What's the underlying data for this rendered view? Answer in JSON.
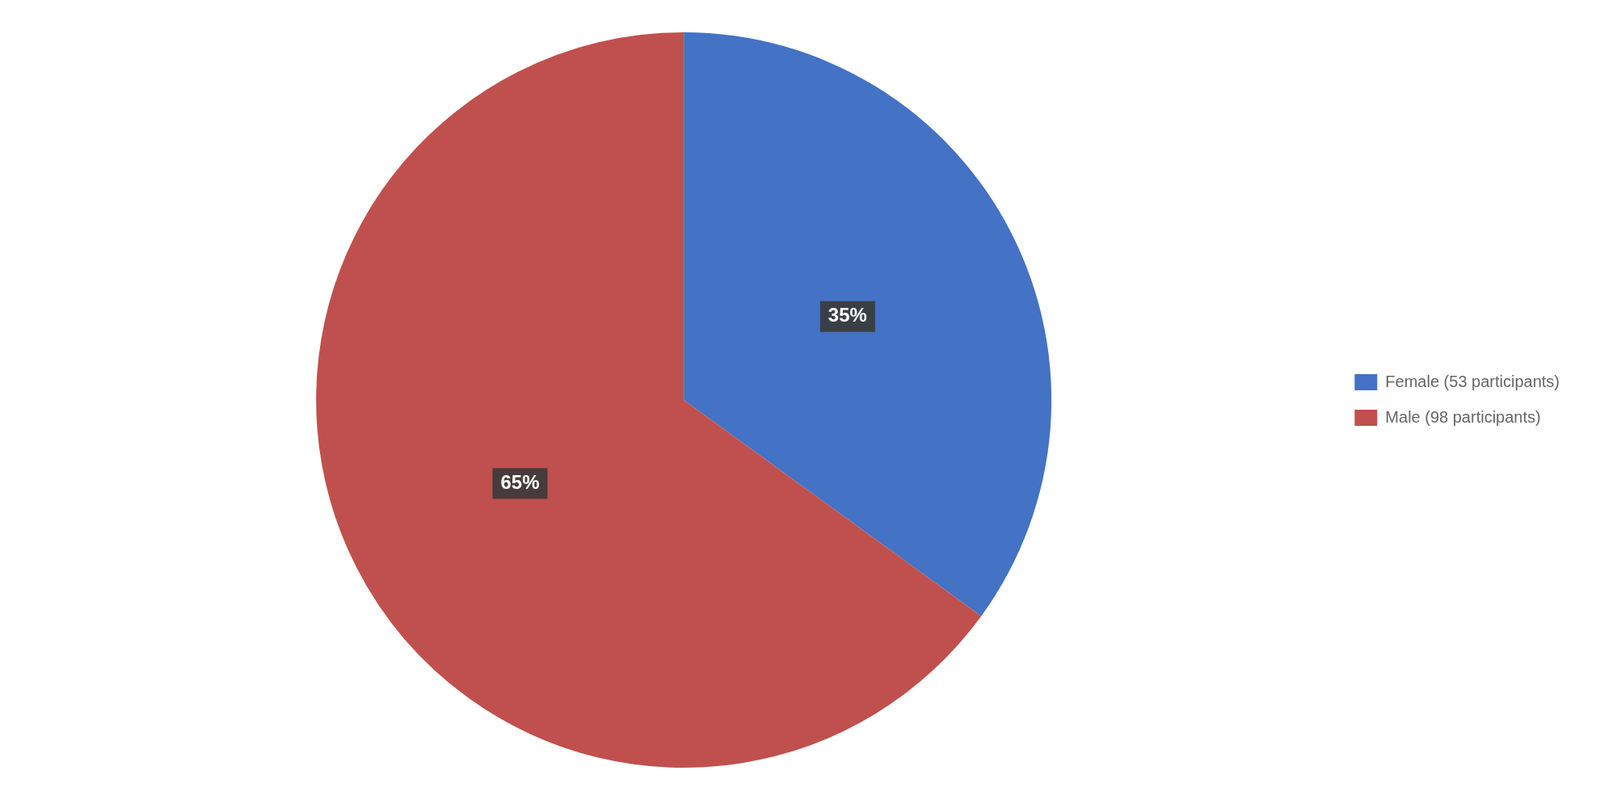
{
  "chart_data": {
    "type": "pie",
    "categories": [
      "Female (53 participants)",
      "Male (98 participants)"
    ],
    "values": [
      35,
      65
    ],
    "value_labels": [
      "35%",
      "65%"
    ],
    "colors": [
      "#4472C4",
      "#C0504D"
    ],
    "data_labels": true,
    "legend": "right"
  }
}
